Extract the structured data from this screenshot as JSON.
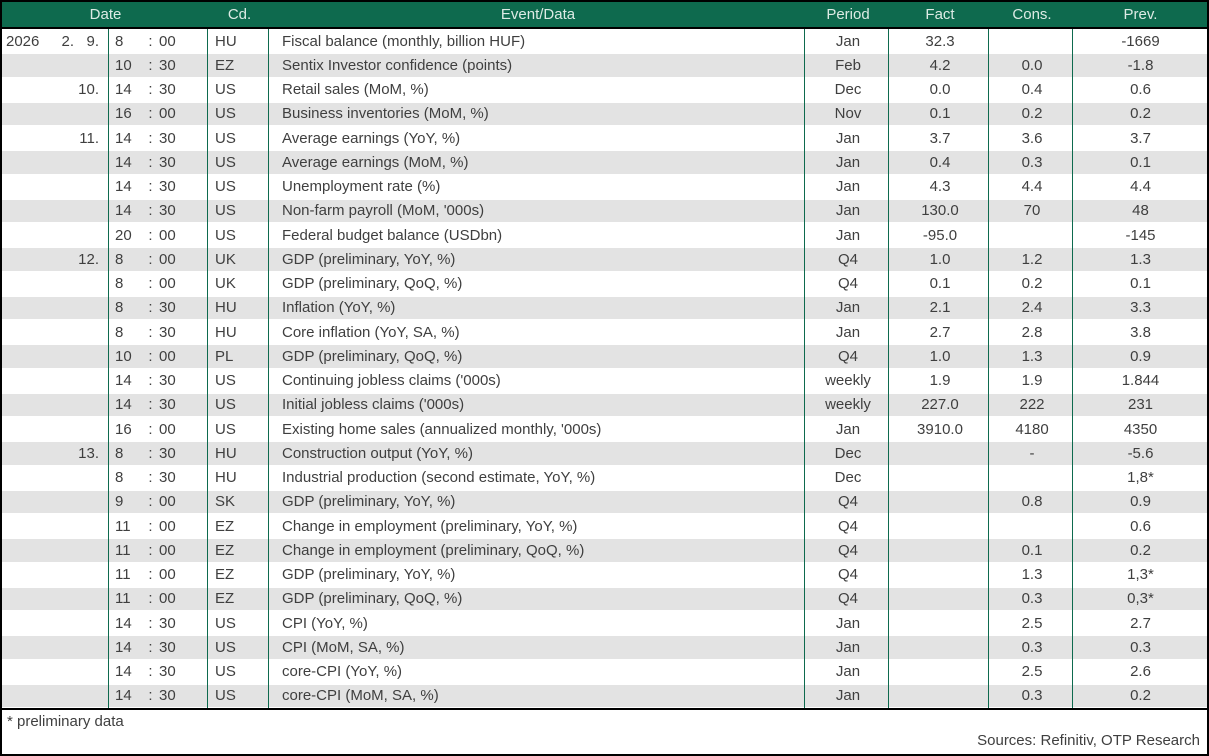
{
  "table": {
    "time_separator": ":",
    "header": {
      "date": "Date",
      "cd": "Cd.",
      "event": "Event/Data",
      "period": "Period",
      "fact": "Fact",
      "cons": "Cons.",
      "prev": "Prev."
    },
    "rows": [
      {
        "year": "2026",
        "month": "2.",
        "day": "9.",
        "hour": "8",
        "min": "00",
        "cd": "HU",
        "event": "Fiscal balance (monthly, billion HUF)",
        "period": "Jan",
        "fact": "32.3",
        "cons": "",
        "prev": "-1669"
      },
      {
        "year": "",
        "month": "",
        "day": "",
        "hour": "10",
        "min": "30",
        "cd": "EZ",
        "event": "Sentix Investor confidence (points)",
        "period": "Feb",
        "fact": "4.2",
        "cons": "0.0",
        "prev": "-1.8"
      },
      {
        "year": "",
        "month": "",
        "day": "10.",
        "hour": "14",
        "min": "30",
        "cd": "US",
        "event": "Retail sales (MoM, %)",
        "period": "Dec",
        "fact": "0.0",
        "cons": "0.4",
        "prev": "0.6"
      },
      {
        "year": "",
        "month": "",
        "day": "",
        "hour": "16",
        "min": "00",
        "cd": "US",
        "event": "Business inventories (MoM, %)",
        "period": "Nov",
        "fact": "0.1",
        "cons": "0.2",
        "prev": "0.2"
      },
      {
        "year": "",
        "month": "",
        "day": "11.",
        "hour": "14",
        "min": "30",
        "cd": "US",
        "event": "Average earnings (YoY, %)",
        "period": "Jan",
        "fact": "3.7",
        "cons": "3.6",
        "prev": "3.7"
      },
      {
        "year": "",
        "month": "",
        "day": "",
        "hour": "14",
        "min": "30",
        "cd": "US",
        "event": "Average earnings (MoM, %)",
        "period": "Jan",
        "fact": "0.4",
        "cons": "0.3",
        "prev": "0.1"
      },
      {
        "year": "",
        "month": "",
        "day": "",
        "hour": "14",
        "min": "30",
        "cd": "US",
        "event": "Unemployment rate (%)",
        "period": "Jan",
        "fact": "4.3",
        "cons": "4.4",
        "prev": "4.4"
      },
      {
        "year": "",
        "month": "",
        "day": "",
        "hour": "14",
        "min": "30",
        "cd": "US",
        "event": "Non-farm payroll (MoM, '000s)",
        "period": "Jan",
        "fact": "130.0",
        "cons": "70",
        "prev": "48"
      },
      {
        "year": "",
        "month": "",
        "day": "",
        "hour": "20",
        "min": "00",
        "cd": "US",
        "event": "Federal budget balance (USDbn)",
        "period": "Jan",
        "fact": "-95.0",
        "cons": "",
        "prev": "-145"
      },
      {
        "year": "",
        "month": "",
        "day": "12.",
        "hour": "8",
        "min": "00",
        "cd": "UK",
        "event": "GDP (preliminary, YoY, %)",
        "period": "Q4",
        "fact": "1.0",
        "cons": "1.2",
        "prev": "1.3"
      },
      {
        "year": "",
        "month": "",
        "day": "",
        "hour": "8",
        "min": "00",
        "cd": "UK",
        "event": "GDP (preliminary, QoQ, %)",
        "period": "Q4",
        "fact": "0.1",
        "cons": "0.2",
        "prev": "0.1"
      },
      {
        "year": "",
        "month": "",
        "day": "",
        "hour": "8",
        "min": "30",
        "cd": "HU",
        "event": "Inflation (YoY, %)",
        "period": "Jan",
        "fact": "2.1",
        "cons": "2.4",
        "prev": "3.3"
      },
      {
        "year": "",
        "month": "",
        "day": "",
        "hour": "8",
        "min": "30",
        "cd": "HU",
        "event": "Core inflation (YoY, SA, %)",
        "period": "Jan",
        "fact": "2.7",
        "cons": "2.8",
        "prev": "3.8"
      },
      {
        "year": "",
        "month": "",
        "day": "",
        "hour": "10",
        "min": "00",
        "cd": "PL",
        "event": "GDP (preliminary, QoQ, %)",
        "period": "Q4",
        "fact": "1.0",
        "cons": "1.3",
        "prev": "0.9"
      },
      {
        "year": "",
        "month": "",
        "day": "",
        "hour": "14",
        "min": "30",
        "cd": "US",
        "event": "Continuing jobless claims ('000s)",
        "period": "weekly",
        "fact": "1.9",
        "cons": "1.9",
        "prev": "1.844"
      },
      {
        "year": "",
        "month": "",
        "day": "",
        "hour": "14",
        "min": "30",
        "cd": "US",
        "event": "Initial jobless claims ('000s)",
        "period": "weekly",
        "fact": "227.0",
        "cons": "222",
        "prev": "231"
      },
      {
        "year": "",
        "month": "",
        "day": "",
        "hour": "16",
        "min": "00",
        "cd": "US",
        "event": "Existing home sales (annualized monthly, '000s)",
        "period": "Jan",
        "fact": "3910.0",
        "cons": "4180",
        "prev": "4350"
      },
      {
        "year": "",
        "month": "",
        "day": "13.",
        "hour": "8",
        "min": "30",
        "cd": "HU",
        "event": "Construction output (YoY, %)",
        "period": "Dec",
        "fact": "",
        "cons": "-",
        "prev": "-5.6"
      },
      {
        "year": "",
        "month": "",
        "day": "",
        "hour": "8",
        "min": "30",
        "cd": "HU",
        "event": "Industrial production (second estimate, YoY, %)",
        "period": "Dec",
        "fact": "",
        "cons": "",
        "prev": "1,8*"
      },
      {
        "year": "",
        "month": "",
        "day": "",
        "hour": "9",
        "min": "00",
        "cd": "SK",
        "event": "GDP (preliminary, YoY, %)",
        "period": "Q4",
        "fact": "",
        "cons": "0.8",
        "prev": "0.9"
      },
      {
        "year": "",
        "month": "",
        "day": "",
        "hour": "11",
        "min": "00",
        "cd": "EZ",
        "event": "Change in employment (preliminary, YoY, %)",
        "period": "Q4",
        "fact": "",
        "cons": "",
        "prev": "0.6"
      },
      {
        "year": "",
        "month": "",
        "day": "",
        "hour": "11",
        "min": "00",
        "cd": "EZ",
        "event": "Change in employment (preliminary, QoQ, %)",
        "period": "Q4",
        "fact": "",
        "cons": "0.1",
        "prev": "0.2"
      },
      {
        "year": "",
        "month": "",
        "day": "",
        "hour": "11",
        "min": "00",
        "cd": "EZ",
        "event": "GDP (preliminary, YoY, %)",
        "period": "Q4",
        "fact": "",
        "cons": "1.3",
        "prev": "1,3*"
      },
      {
        "year": "",
        "month": "",
        "day": "",
        "hour": "11",
        "min": "00",
        "cd": "EZ",
        "event": "GDP (preliminary, QoQ, %)",
        "period": "Q4",
        "fact": "",
        "cons": "0.3",
        "prev": "0,3*"
      },
      {
        "year": "",
        "month": "",
        "day": "",
        "hour": "14",
        "min": "30",
        "cd": "US",
        "event": "CPI (YoY, %)",
        "period": "Jan",
        "fact": "",
        "cons": "2.5",
        "prev": "2.7"
      },
      {
        "year": "",
        "month": "",
        "day": "",
        "hour": "14",
        "min": "30",
        "cd": "US",
        "event": "CPI (MoM, SA, %)",
        "period": "Jan",
        "fact": "",
        "cons": "0.3",
        "prev": "0.3"
      },
      {
        "year": "",
        "month": "",
        "day": "",
        "hour": "14",
        "min": "30",
        "cd": "US",
        "event": "core-CPI (YoY, %)",
        "period": "Jan",
        "fact": "",
        "cons": "2.5",
        "prev": "2.6"
      },
      {
        "year": "",
        "month": "",
        "day": "",
        "hour": "14",
        "min": "30",
        "cd": "US",
        "event": "core-CPI (MoM, SA, %)",
        "period": "Jan",
        "fact": "",
        "cons": "0.3",
        "prev": "0.2"
      }
    ]
  },
  "footer": {
    "note": "* preliminary data",
    "sources": "Sources: Refinitiv, OTP Research"
  },
  "colors": {
    "header_bg": "#0E6A4E",
    "header_text": "#DDEBE5",
    "row_alt_bg": "#E3E3E3",
    "grid_line": "#0E6A4E",
    "outer_border": "#000000",
    "text": "#3F3F3F"
  }
}
